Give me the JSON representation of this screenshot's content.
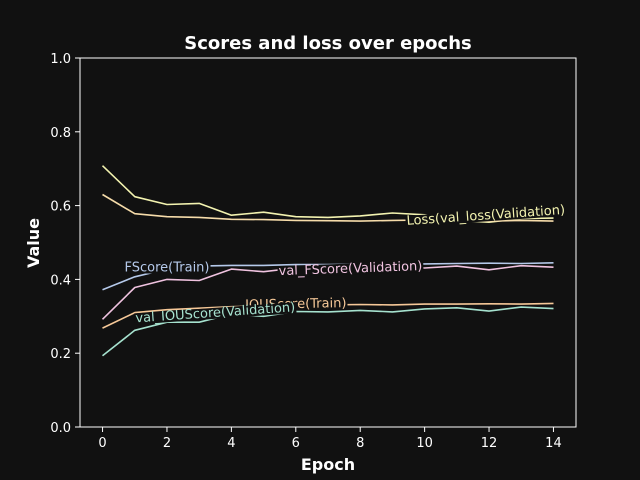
{
  "chart_data": {
    "type": "line",
    "title": "Scores and loss over epochs",
    "xlabel": "Epoch",
    "ylabel": "Value",
    "xlim": [
      -0.7,
      14.7
    ],
    "ylim": [
      0.0,
      1.0
    ],
    "xticks": [
      0,
      2,
      4,
      6,
      8,
      10,
      12,
      14
    ],
    "yticks": [
      0.0,
      0.2,
      0.4,
      0.6,
      0.8,
      1.0
    ],
    "grid": false,
    "legend": "inline labels",
    "x": [
      0,
      1,
      2,
      3,
      4,
      5,
      6,
      7,
      8,
      9,
      10,
      11,
      12,
      13,
      14
    ],
    "series": [
      {
        "name": "Loss(Validation)",
        "color": "#f3f3b0",
        "values": [
          0.708,
          0.624,
          0.603,
          0.606,
          0.574,
          0.582,
          0.57,
          0.568,
          0.572,
          0.58,
          0.575,
          0.56,
          0.555,
          0.565,
          0.566
        ]
      },
      {
        "name": "val_loss(Validation)",
        "color": "#f6dcaa",
        "values": [
          0.63,
          0.578,
          0.57,
          0.568,
          0.563,
          0.562,
          0.56,
          0.559,
          0.558,
          0.56,
          0.561,
          0.56,
          0.558,
          0.56,
          0.558
        ]
      },
      {
        "name": "FScore(Train)",
        "color": "#b5c9ea",
        "values": [
          0.372,
          0.407,
          0.428,
          0.436,
          0.438,
          0.438,
          0.44,
          0.44,
          0.441,
          0.442,
          0.442,
          0.443,
          0.444,
          0.443,
          0.445
        ]
      },
      {
        "name": "val_FScore(Validation)",
        "color": "#f0c3e0",
        "values": [
          0.292,
          0.378,
          0.4,
          0.397,
          0.428,
          0.421,
          0.431,
          0.431,
          0.435,
          0.434,
          0.431,
          0.436,
          0.426,
          0.437,
          0.433
        ]
      },
      {
        "name": "IOUScore(Train)",
        "color": "#f6c898",
        "values": [
          0.268,
          0.31,
          0.318,
          0.322,
          0.326,
          0.328,
          0.33,
          0.331,
          0.332,
          0.331,
          0.333,
          0.333,
          0.334,
          0.333,
          0.335
        ]
      },
      {
        "name": "val_IOUScore(Validation)",
        "color": "#a6e2cf",
        "values": [
          0.193,
          0.262,
          0.284,
          0.284,
          0.306,
          0.3,
          0.313,
          0.312,
          0.316,
          0.312,
          0.32,
          0.323,
          0.314,
          0.325,
          0.321
        ]
      }
    ],
    "labels": [
      {
        "text": "Loss(val_loss(Validation)",
        "x": 11.9,
        "y": 0.572,
        "rotate": -4,
        "color": "#f3f3b0"
      },
      {
        "text": "FScore(Train)",
        "x": 2.0,
        "y": 0.431,
        "rotate": 0,
        "color": "#b5c9ea"
      },
      {
        "text": "val_FScore(Validation)",
        "x": 7.7,
        "y": 0.428,
        "rotate": -2,
        "color": "#f0c3e0"
      },
      {
        "text": "IOUScore(Train)",
        "x": 6.0,
        "y": 0.332,
        "rotate": -1,
        "color": "#f6c898"
      },
      {
        "text": "val_IOUScore(Validation)",
        "x": 3.5,
        "y": 0.308,
        "rotate": -4,
        "color": "#a6e2cf"
      }
    ]
  }
}
